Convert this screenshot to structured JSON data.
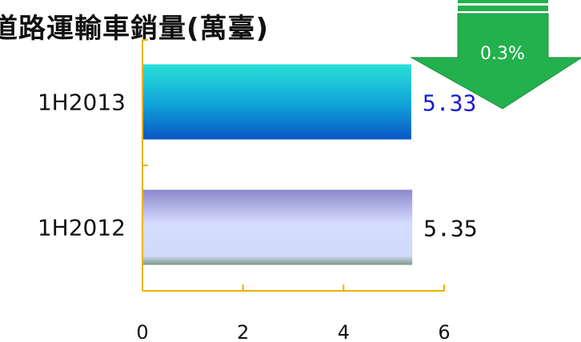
{
  "chart_data": {
    "type": "bar",
    "orientation": "horizontal",
    "title": "道路運輸車銷量(萬臺)",
    "categories": [
      "1H2013",
      "1H2012"
    ],
    "values": [
      5.33,
      5.35
    ],
    "value_labels": [
      "5.33",
      "5.35"
    ],
    "xlim": [
      0,
      6
    ],
    "x_ticks": [
      "0",
      "2",
      "4",
      "6"
    ],
    "grid": false,
    "colors": {
      "bar_1H2013_top": "#29e0d8",
      "bar_1H2013_bottom": "#0a56c4",
      "bar_1H2012_top": "#8c88cc",
      "bar_1H2012_bottom": "#7f9a86",
      "axis": "#e8b400",
      "label_1H2013": "#1a1ad6",
      "label_1H2012": "#111111"
    }
  },
  "badge": {
    "text": "0.3%",
    "direction": "down",
    "icon": "green-down-arrow-icon",
    "color": "#22b14c"
  }
}
